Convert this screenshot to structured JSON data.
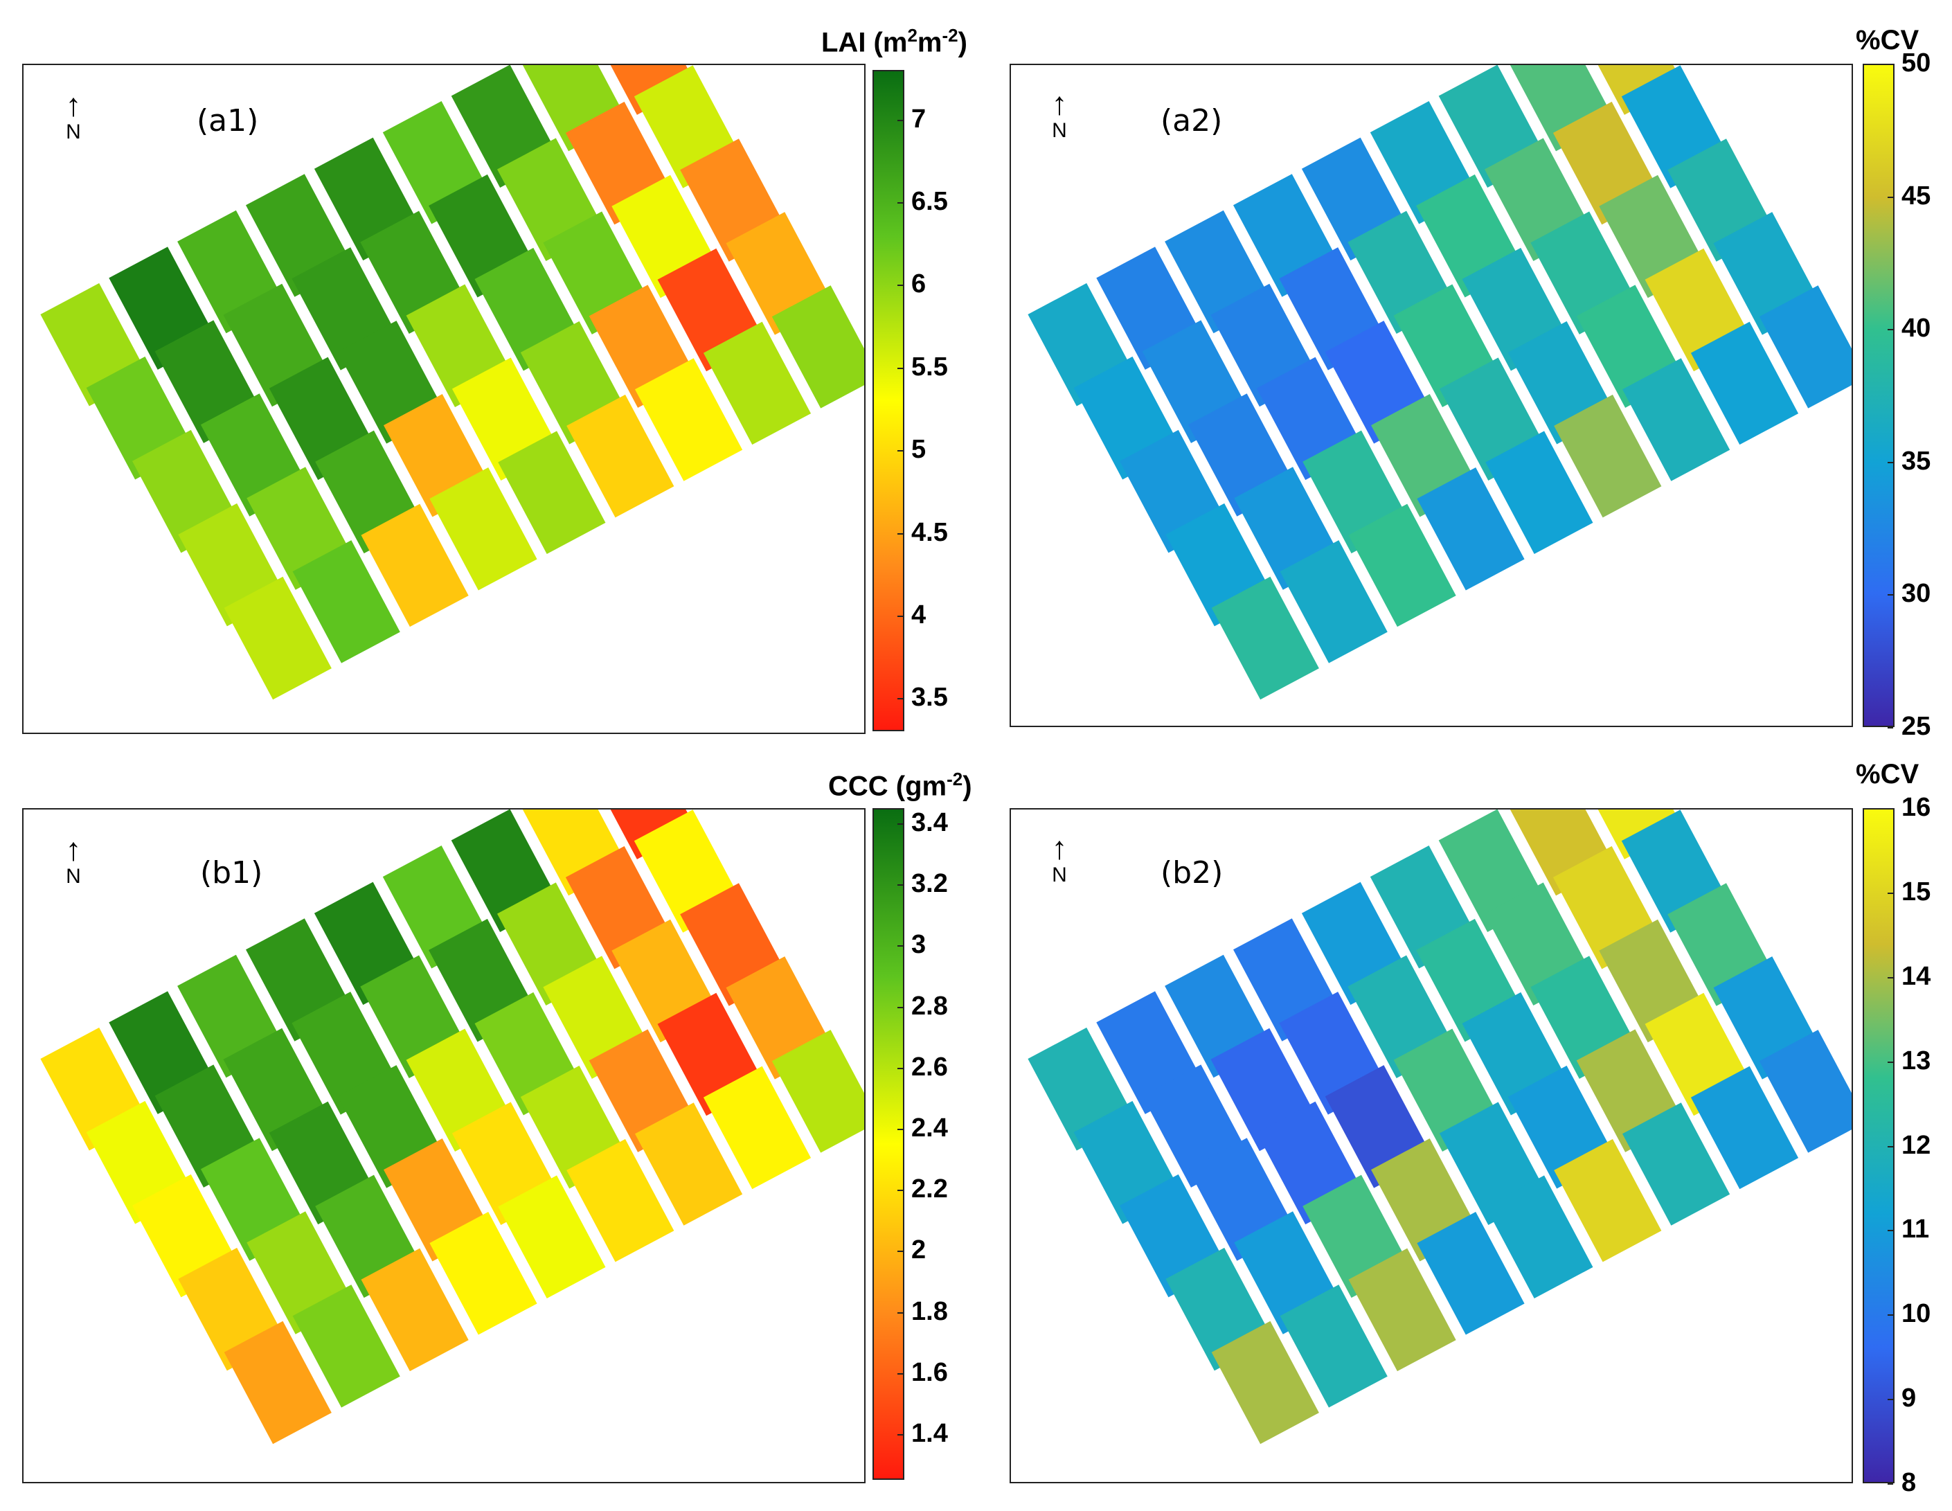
{
  "chart_data": [
    {
      "id": "a1",
      "type": "heatmap",
      "panel_label": "(a1)",
      "north_label": "N",
      "colorbar": {
        "title_main": "LAI (m",
        "title_sup1": "2",
        "title_mid": "m",
        "title_sup2": "-2",
        "title_end": ")",
        "range": [
          3.3,
          7.3
        ],
        "ticks": [
          "3.5",
          "4",
          "4.5",
          "5",
          "5.5",
          "6",
          "6.5",
          "7"
        ],
        "colormap": "red-yellow-green",
        "colors": [
          "#ff1a0d",
          "#ff8c1a",
          "#ffff00",
          "#5ec41f",
          "#0a6e12"
        ]
      },
      "plot_values": [
        [
          5.9,
          7.1,
          6.5,
          6.7,
          6.9,
          6.3,
          6.8,
          6.0,
          4.1
        ],
        [
          6.2,
          6.9,
          6.6,
          6.8,
          6.7,
          6.9,
          6.1,
          4.2,
          5.6
        ],
        [
          6.0,
          6.5,
          6.9,
          6.8,
          5.9,
          6.4,
          6.2,
          5.4,
          4.3
        ],
        [
          5.8,
          6.1,
          6.6,
          4.6,
          5.4,
          6.0,
          4.4,
          3.7,
          4.6
        ],
        [
          5.7,
          6.3,
          4.8,
          5.6,
          5.9,
          4.9,
          5.2,
          5.8,
          6.0
        ]
      ]
    },
    {
      "id": "a2",
      "type": "heatmap",
      "panel_label": "(a2)",
      "north_label": "N",
      "colorbar": {
        "title": "%CV",
        "range": [
          25,
          50
        ],
        "ticks": [
          "25",
          "30",
          "35",
          "40",
          "45",
          "50"
        ],
        "colormap": "parula",
        "colors": [
          "#3e26a8",
          "#2f6cf2",
          "#12a3d5",
          "#31c08f",
          "#cfbd2e",
          "#f9fb0e"
        ]
      },
      "plot_values": [
        [
          36,
          32,
          33,
          34,
          33,
          36,
          38,
          41,
          46
        ],
        [
          35,
          33,
          32,
          31,
          38,
          40,
          41,
          45,
          35
        ],
        [
          34,
          32,
          31,
          30,
          40,
          37,
          39,
          42,
          38
        ],
        [
          35,
          34,
          39,
          41,
          38,
          36,
          40,
          47,
          36
        ],
        [
          39,
          36,
          40,
          34,
          35,
          43,
          37,
          35,
          34
        ]
      ]
    },
    {
      "id": "b1",
      "type": "heatmap",
      "panel_label": "(b1)",
      "north_label": "N",
      "colorbar": {
        "title_main": "CCC (gm",
        "title_sup1": "-2",
        "title_end": ")",
        "range": [
          1.25,
          3.45
        ],
        "ticks": [
          "1.4",
          "1.6",
          "1.8",
          "2",
          "2.2",
          "2.4",
          "2.6",
          "2.8",
          "3",
          "3.2",
          "3.4"
        ],
        "colormap": "red-yellow-green",
        "colors": [
          "#ff1a0d",
          "#ff8c1a",
          "#ffff00",
          "#5ec41f",
          "#0a6e12"
        ]
      },
      "plot_values": [
        [
          2.2,
          3.3,
          3.0,
          3.2,
          3.3,
          2.9,
          3.3,
          2.2,
          1.4
        ],
        [
          2.4,
          3.2,
          3.1,
          3.1,
          3.0,
          3.2,
          2.7,
          1.7,
          2.3
        ],
        [
          2.3,
          2.9,
          3.2,
          3.1,
          2.5,
          2.8,
          2.5,
          2.0,
          1.6
        ],
        [
          2.1,
          2.7,
          3.0,
          1.9,
          2.2,
          2.6,
          1.8,
          1.4,
          1.9
        ],
        [
          1.9,
          2.8,
          2.0,
          2.3,
          2.4,
          2.2,
          2.1,
          2.3,
          2.6
        ]
      ]
    },
    {
      "id": "b2",
      "type": "heatmap",
      "panel_label": "(b2)",
      "north_label": "N",
      "colorbar": {
        "title": "%CV",
        "range": [
          8,
          16
        ],
        "ticks": [
          "8",
          "9",
          "10",
          "11",
          "12",
          "13",
          "14",
          "15",
          "16"
        ],
        "colormap": "parula",
        "colors": [
          "#3e26a8",
          "#2f6cf2",
          "#12a3d5",
          "#31c08f",
          "#cfbd2e",
          "#f9fb0e"
        ]
      },
      "plot_values": [
        [
          12,
          10,
          10.5,
          10,
          11,
          12,
          13,
          14.5,
          15.5
        ],
        [
          11.5,
          10,
          9.5,
          9.5,
          12,
          12.5,
          13,
          15,
          11.5
        ],
        [
          11,
          10,
          9.5,
          9,
          13,
          11.5,
          12.5,
          14,
          13
        ],
        [
          12,
          11,
          13,
          14,
          11.5,
          11,
          14,
          15.5,
          11
        ],
        [
          14,
          12,
          14,
          11,
          11.5,
          15,
          12,
          11,
          10.5
        ]
      ]
    }
  ]
}
